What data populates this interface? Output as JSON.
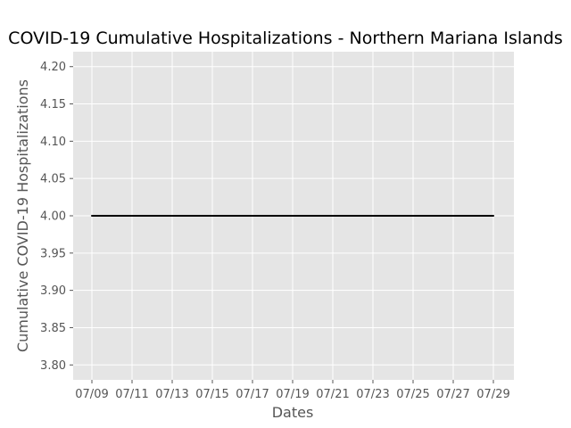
{
  "chart_data": {
    "type": "line",
    "title": "COVID-19 Cumulative Hospitalizations - Northern Mariana Islands",
    "xlabel": "Dates",
    "ylabel": "Cumulative COVID-19 Hospitalizations",
    "x": [
      "07/09",
      "07/10",
      "07/11",
      "07/12",
      "07/13",
      "07/14",
      "07/15",
      "07/16",
      "07/17",
      "07/18",
      "07/19",
      "07/20",
      "07/21",
      "07/22",
      "07/23",
      "07/24",
      "07/25",
      "07/26",
      "07/27",
      "07/28",
      "07/29"
    ],
    "x_ticks": [
      "07/09",
      "07/11",
      "07/13",
      "07/15",
      "07/17",
      "07/19",
      "07/21",
      "07/23",
      "07/25",
      "07/27",
      "07/29"
    ],
    "y_ticks": [
      "3.80",
      "3.85",
      "3.90",
      "3.95",
      "4.00",
      "4.05",
      "4.10",
      "4.15",
      "4.20"
    ],
    "ylim": [
      3.78,
      4.22
    ],
    "grid": true,
    "series": [
      {
        "values": [
          4,
          4,
          4,
          4,
          4,
          4,
          4,
          4,
          4,
          4,
          4,
          4,
          4,
          4,
          4,
          4,
          4,
          4,
          4,
          4,
          4
        ],
        "color": "#000000"
      }
    ],
    "style": {
      "plot_background": "#e5e5e5",
      "grid_color": "#ffffff",
      "tick_color": "#555555"
    }
  }
}
